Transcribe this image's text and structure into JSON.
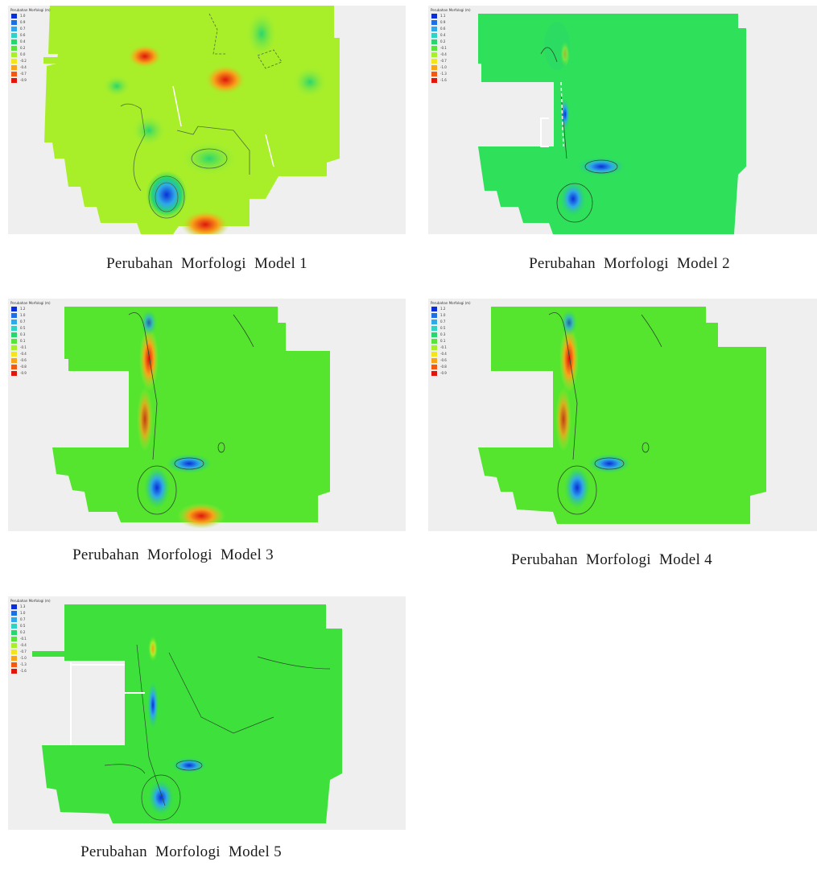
{
  "panels": [
    {
      "caption": "Perubahan  Morfologi  Model 1",
      "legend": {
        "title": "Perubahan Morfologi (m)",
        "entries": [
          {
            "label": "1.0",
            "color": "#0a2fd8"
          },
          {
            "label": "0.9",
            "color": "#1e6fe6"
          },
          {
            "label": "0.7",
            "color": "#2fa9e8"
          },
          {
            "label": "0.6",
            "color": "#2fd3c4"
          },
          {
            "label": "0.4",
            "color": "#27d66f"
          },
          {
            "label": "0.2",
            "color": "#5ae33a"
          },
          {
            "label": "0.0",
            "color": "#a8ef2a"
          },
          {
            "label": "-0.2",
            "color": "#f4e41c"
          },
          {
            "label": "-0.4",
            "color": "#f7a419"
          },
          {
            "label": "-0.7",
            "color": "#f25a12"
          },
          {
            "label": "-0.9",
            "color": "#e0160d"
          }
        ]
      }
    },
    {
      "caption": "Perubahan  Morfologi  Model 2",
      "legend": {
        "title": "Perubahan Morfologi (m)",
        "entries": [
          {
            "label": "1.1",
            "color": "#0a2fd8"
          },
          {
            "label": "0.9",
            "color": "#1e6fe6"
          },
          {
            "label": "0.6",
            "color": "#2fa9e8"
          },
          {
            "label": "0.4",
            "color": "#2fd3c4"
          },
          {
            "label": "0.2",
            "color": "#27d66f"
          },
          {
            "label": "-0.1",
            "color": "#5ae33a"
          },
          {
            "label": "-0.4",
            "color": "#a8ef2a"
          },
          {
            "label": "-0.7",
            "color": "#f4e41c"
          },
          {
            "label": "-1.0",
            "color": "#f7a419"
          },
          {
            "label": "-1.3",
            "color": "#f25a12"
          },
          {
            "label": "-1.6",
            "color": "#e0160d"
          }
        ]
      }
    },
    {
      "caption": "Perubahan  Morfologi  Model 3",
      "legend": {
        "title": "Perubahan Morfologi (m)",
        "entries": [
          {
            "label": "1.2",
            "color": "#0a2fd8"
          },
          {
            "label": "1.0",
            "color": "#1e6fe6"
          },
          {
            "label": "0.7",
            "color": "#2fa9e8"
          },
          {
            "label": "0.5",
            "color": "#2fd3c4"
          },
          {
            "label": "0.3",
            "color": "#27d66f"
          },
          {
            "label": "0.1",
            "color": "#5ae33a"
          },
          {
            "label": "-0.1",
            "color": "#a8ef2a"
          },
          {
            "label": "-0.4",
            "color": "#f4e41c"
          },
          {
            "label": "-0.6",
            "color": "#f7a419"
          },
          {
            "label": "-0.8",
            "color": "#f25a12"
          },
          {
            "label": "-0.9",
            "color": "#e0160d"
          }
        ]
      }
    },
    {
      "caption": "Perubahan  Morfologi  Model 4",
      "legend": {
        "title": "Perubahan Morfologi (m)",
        "entries": [
          {
            "label": "1.2",
            "color": "#0a2fd8"
          },
          {
            "label": "1.0",
            "color": "#1e6fe6"
          },
          {
            "label": "0.7",
            "color": "#2fa9e8"
          },
          {
            "label": "0.5",
            "color": "#2fd3c4"
          },
          {
            "label": "0.3",
            "color": "#27d66f"
          },
          {
            "label": "0.1",
            "color": "#5ae33a"
          },
          {
            "label": "-0.1",
            "color": "#a8ef2a"
          },
          {
            "label": "-0.4",
            "color": "#f4e41c"
          },
          {
            "label": "-0.6",
            "color": "#f7a419"
          },
          {
            "label": "-0.8",
            "color": "#f25a12"
          },
          {
            "label": "-0.9",
            "color": "#e0160d"
          }
        ]
      }
    },
    {
      "caption": "Perubahan  Morfologi  Model 5",
      "legend": {
        "title": "Perubahan Morfologi (m)",
        "entries": [
          {
            "label": "1.3",
            "color": "#0a2fd8"
          },
          {
            "label": "1.0",
            "color": "#1e6fe6"
          },
          {
            "label": "0.7",
            "color": "#2fa9e8"
          },
          {
            "label": "0.5",
            "color": "#2fd3c4"
          },
          {
            "label": "0.2",
            "color": "#27d66f"
          },
          {
            "label": "-0.1",
            "color": "#5ae33a"
          },
          {
            "label": "-0.4",
            "color": "#a8ef2a"
          },
          {
            "label": "-0.7",
            "color": "#f4e41c"
          },
          {
            "label": "-1.0",
            "color": "#f7a419"
          },
          {
            "label": "-1.3",
            "color": "#f25a12"
          },
          {
            "label": "-1.6",
            "color": "#e0160d"
          }
        ]
      }
    }
  ]
}
